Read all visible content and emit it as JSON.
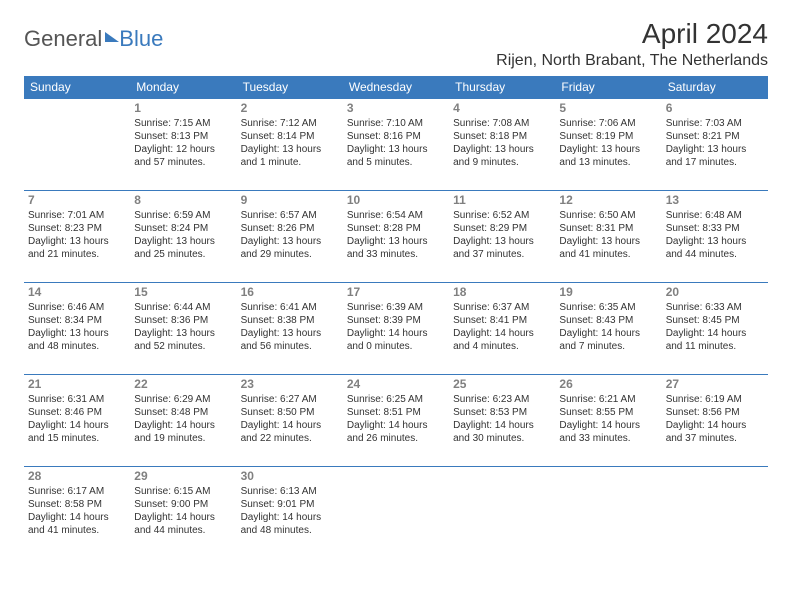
{
  "brand": {
    "general": "General",
    "blue": "Blue"
  },
  "title": "April 2024",
  "location": "Rijen, North Brabant, The Netherlands",
  "header_bg": "#3a7abd",
  "header_fg": "#ffffff",
  "border_color": "#3a7abd",
  "daynum_color": "#808080",
  "text_color": "#333333",
  "font_family": "Arial, Helvetica, sans-serif",
  "daynum_fontsize": 12,
  "entry_fontsize": 10,
  "weekdays": [
    "Sunday",
    "Monday",
    "Tuesday",
    "Wednesday",
    "Thursday",
    "Friday",
    "Saturday"
  ],
  "weeks": [
    [
      null,
      {
        "d": "1",
        "sr": "7:15 AM",
        "ss": "8:13 PM",
        "dl": "12 hours and 57 minutes."
      },
      {
        "d": "2",
        "sr": "7:12 AM",
        "ss": "8:14 PM",
        "dl": "13 hours and 1 minute."
      },
      {
        "d": "3",
        "sr": "7:10 AM",
        "ss": "8:16 PM",
        "dl": "13 hours and 5 minutes."
      },
      {
        "d": "4",
        "sr": "7:08 AM",
        "ss": "8:18 PM",
        "dl": "13 hours and 9 minutes."
      },
      {
        "d": "5",
        "sr": "7:06 AM",
        "ss": "8:19 PM",
        "dl": "13 hours and 13 minutes."
      },
      {
        "d": "6",
        "sr": "7:03 AM",
        "ss": "8:21 PM",
        "dl": "13 hours and 17 minutes."
      }
    ],
    [
      {
        "d": "7",
        "sr": "7:01 AM",
        "ss": "8:23 PM",
        "dl": "13 hours and 21 minutes."
      },
      {
        "d": "8",
        "sr": "6:59 AM",
        "ss": "8:24 PM",
        "dl": "13 hours and 25 minutes."
      },
      {
        "d": "9",
        "sr": "6:57 AM",
        "ss": "8:26 PM",
        "dl": "13 hours and 29 minutes."
      },
      {
        "d": "10",
        "sr": "6:54 AM",
        "ss": "8:28 PM",
        "dl": "13 hours and 33 minutes."
      },
      {
        "d": "11",
        "sr": "6:52 AM",
        "ss": "8:29 PM",
        "dl": "13 hours and 37 minutes."
      },
      {
        "d": "12",
        "sr": "6:50 AM",
        "ss": "8:31 PM",
        "dl": "13 hours and 41 minutes."
      },
      {
        "d": "13",
        "sr": "6:48 AM",
        "ss": "8:33 PM",
        "dl": "13 hours and 44 minutes."
      }
    ],
    [
      {
        "d": "14",
        "sr": "6:46 AM",
        "ss": "8:34 PM",
        "dl": "13 hours and 48 minutes."
      },
      {
        "d": "15",
        "sr": "6:44 AM",
        "ss": "8:36 PM",
        "dl": "13 hours and 52 minutes."
      },
      {
        "d": "16",
        "sr": "6:41 AM",
        "ss": "8:38 PM",
        "dl": "13 hours and 56 minutes."
      },
      {
        "d": "17",
        "sr": "6:39 AM",
        "ss": "8:39 PM",
        "dl": "14 hours and 0 minutes."
      },
      {
        "d": "18",
        "sr": "6:37 AM",
        "ss": "8:41 PM",
        "dl": "14 hours and 4 minutes."
      },
      {
        "d": "19",
        "sr": "6:35 AM",
        "ss": "8:43 PM",
        "dl": "14 hours and 7 minutes."
      },
      {
        "d": "20",
        "sr": "6:33 AM",
        "ss": "8:45 PM",
        "dl": "14 hours and 11 minutes."
      }
    ],
    [
      {
        "d": "21",
        "sr": "6:31 AM",
        "ss": "8:46 PM",
        "dl": "14 hours and 15 minutes."
      },
      {
        "d": "22",
        "sr": "6:29 AM",
        "ss": "8:48 PM",
        "dl": "14 hours and 19 minutes."
      },
      {
        "d": "23",
        "sr": "6:27 AM",
        "ss": "8:50 PM",
        "dl": "14 hours and 22 minutes."
      },
      {
        "d": "24",
        "sr": "6:25 AM",
        "ss": "8:51 PM",
        "dl": "14 hours and 26 minutes."
      },
      {
        "d": "25",
        "sr": "6:23 AM",
        "ss": "8:53 PM",
        "dl": "14 hours and 30 minutes."
      },
      {
        "d": "26",
        "sr": "6:21 AM",
        "ss": "8:55 PM",
        "dl": "14 hours and 33 minutes."
      },
      {
        "d": "27",
        "sr": "6:19 AM",
        "ss": "8:56 PM",
        "dl": "14 hours and 37 minutes."
      }
    ],
    [
      {
        "d": "28",
        "sr": "6:17 AM",
        "ss": "8:58 PM",
        "dl": "14 hours and 41 minutes."
      },
      {
        "d": "29",
        "sr": "6:15 AM",
        "ss": "9:00 PM",
        "dl": "14 hours and 44 minutes."
      },
      {
        "d": "30",
        "sr": "6:13 AM",
        "ss": "9:01 PM",
        "dl": "14 hours and 48 minutes."
      },
      null,
      null,
      null,
      null
    ]
  ],
  "labels": {
    "sunrise": "Sunrise:",
    "sunset": "Sunset:",
    "daylight": "Daylight:"
  }
}
